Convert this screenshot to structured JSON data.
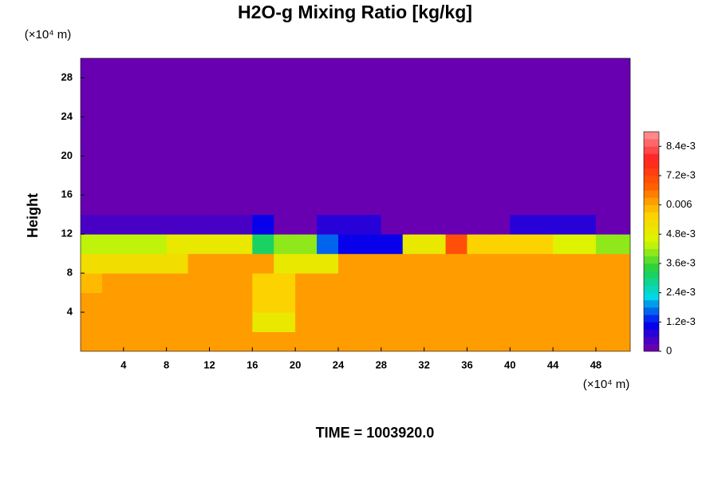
{
  "chart_data": {
    "type": "heatmap",
    "title": "H2O-g Mixing Ratio [kg/kg]",
    "ylabel": "Height",
    "yunit": "(×10⁴ m)",
    "xunit": "(×10⁴ m)",
    "annotation": "TIME = 1003920.0",
    "x": [
      1,
      3,
      5,
      7,
      9,
      11,
      13,
      15,
      17,
      19,
      21,
      23,
      25,
      27,
      29,
      31,
      33,
      35,
      37,
      39,
      41,
      43,
      45,
      47,
      49,
      51
    ],
    "y": [
      1,
      3,
      5,
      7,
      9,
      11,
      13,
      15,
      17,
      19,
      21,
      23,
      25,
      27,
      29
    ],
    "cell_size": 2,
    "z": [
      [
        0.0062,
        0.0062,
        0.0062,
        0.0062,
        0.0062,
        0.0062,
        0.0062,
        0.0062,
        0.006,
        0.006,
        0.0062,
        0.0062,
        0.0062,
        0.0062,
        0.0062,
        0.0062,
        0.0062,
        0.0062,
        0.0062,
        0.0062,
        0.0062,
        0.0062,
        0.0062,
        0.0062,
        0.0062,
        0.0062
      ],
      [
        0.0062,
        0.0062,
        0.0062,
        0.0062,
        0.0062,
        0.0062,
        0.0062,
        0.0062,
        0.005,
        0.005,
        0.0062,
        0.0062,
        0.0062,
        0.0062,
        0.0062,
        0.0062,
        0.0062,
        0.0062,
        0.0062,
        0.0062,
        0.0062,
        0.0062,
        0.0062,
        0.0062,
        0.0062,
        0.0062
      ],
      [
        0.0062,
        0.0062,
        0.0062,
        0.0062,
        0.0062,
        0.0062,
        0.0062,
        0.0062,
        0.0054,
        0.0054,
        0.0062,
        0.0062,
        0.0062,
        0.0062,
        0.0062,
        0.0062,
        0.0062,
        0.0062,
        0.0062,
        0.0062,
        0.0062,
        0.0062,
        0.0062,
        0.0062,
        0.0062,
        0.0062
      ],
      [
        0.0058,
        0.0062,
        0.0062,
        0.0062,
        0.0062,
        0.0062,
        0.0062,
        0.0062,
        0.0056,
        0.0056,
        0.0062,
        0.0062,
        0.0062,
        0.0062,
        0.0062,
        0.0062,
        0.0062,
        0.0062,
        0.0062,
        0.0062,
        0.0062,
        0.0062,
        0.0062,
        0.0062,
        0.0062,
        0.0062
      ],
      [
        0.0052,
        0.0052,
        0.0052,
        0.0052,
        0.0052,
        0.0062,
        0.0062,
        0.0062,
        0.0062,
        0.005,
        0.005,
        0.005,
        0.0062,
        0.0062,
        0.0062,
        0.0062,
        0.0062,
        0.0062,
        0.0062,
        0.0062,
        0.0062,
        0.0062,
        0.0062,
        0.0062,
        0.0062,
        0.0062
      ],
      [
        0.0042,
        0.0042,
        0.0042,
        0.0042,
        0.0048,
        0.0048,
        0.0048,
        0.0048,
        0.003,
        0.004,
        0.004,
        0.0015,
        0.001,
        0.001,
        0.001,
        0.005,
        0.005,
        0.007,
        0.0055,
        0.0055,
        0.0055,
        0.0055,
        0.0045,
        0.0045,
        0.004,
        0.004
      ],
      [
        0.0003,
        0.0003,
        0.0003,
        0.0003,
        0.0003,
        0.0003,
        0.0003,
        0.0003,
        0.001,
        0,
        0,
        0.0008,
        0.0008,
        0.0008,
        0,
        0,
        0,
        0,
        0,
        0,
        0.0006,
        0.0006,
        0.0006,
        0.0006,
        0,
        0
      ],
      [
        0,
        0,
        0,
        0,
        0,
        0,
        0,
        0,
        0,
        0,
        0,
        0,
        0,
        0,
        0,
        0,
        0,
        0,
        0,
        0,
        0,
        0,
        0,
        0,
        0,
        0
      ],
      [
        0,
        0,
        0,
        0,
        0,
        0,
        0,
        0,
        0,
        0,
        0,
        0,
        0,
        0,
        0,
        0,
        0,
        0,
        0,
        0,
        0,
        0,
        0,
        0,
        0,
        0
      ],
      [
        0,
        0,
        0,
        0,
        0,
        0,
        0,
        0,
        0,
        0,
        0,
        0,
        0,
        0,
        0,
        0,
        0,
        0,
        0,
        0,
        0,
        0,
        0,
        0,
        0,
        0
      ],
      [
        0,
        0,
        0,
        0,
        0,
        0,
        0,
        0,
        0,
        0,
        0,
        0,
        0,
        0,
        0,
        0,
        0,
        0,
        0,
        0,
        0,
        0,
        0,
        0,
        0,
        0
      ],
      [
        0,
        0,
        0,
        0,
        0,
        0,
        0,
        0,
        0,
        0,
        0,
        0,
        0,
        0,
        0,
        0,
        0,
        0,
        0,
        0,
        0,
        0,
        0,
        0,
        0,
        0
      ],
      [
        0,
        0,
        0,
        0,
        0,
        0,
        0,
        0,
        0,
        0,
        0,
        0,
        0,
        0,
        0,
        0,
        0,
        0,
        0,
        0,
        0,
        0,
        0,
        0,
        0,
        0
      ],
      [
        0,
        0,
        0,
        0,
        0,
        0,
        0,
        0,
        0,
        0,
        0,
        0,
        0,
        0,
        0,
        0,
        0,
        0,
        0,
        0,
        0,
        0,
        0,
        0,
        0,
        0
      ],
      [
        0,
        0,
        0,
        0,
        0,
        0,
        0,
        0,
        0,
        0,
        0,
        0,
        0,
        0,
        0,
        0,
        0,
        0,
        0,
        0,
        0,
        0,
        0,
        0,
        0,
        0
      ]
    ],
    "xlim": [
      0,
      51.2
    ],
    "ylim": [
      0,
      30
    ],
    "xticks": [
      4,
      8,
      12,
      16,
      20,
      24,
      28,
      32,
      36,
      40,
      44,
      48
    ],
    "yticks": [
      4,
      8,
      12,
      16,
      20,
      24,
      28
    ],
    "clim": [
      0,
      0.009
    ],
    "cticks": [
      0,
      {
        "value": 0.0012,
        "label": "1.2e-3"
      },
      {
        "value": 0.0024,
        "label": "2.4e-3"
      },
      {
        "value": 0.0036,
        "label": "3.6e-3"
      },
      {
        "value": 0.0048,
        "label": "4.8e-3"
      },
      0.006,
      {
        "value": 0.0072,
        "label": "7.2e-3"
      },
      {
        "value": 0.0084,
        "label": "8.4e-3"
      }
    ],
    "colormap": [
      "#7800a8",
      "#0000f0",
      "#00d8e8",
      "#20d040",
      "#d8f800",
      "#ffd000",
      "#ff6000",
      "#ff2020",
      "#ff9898"
    ]
  }
}
